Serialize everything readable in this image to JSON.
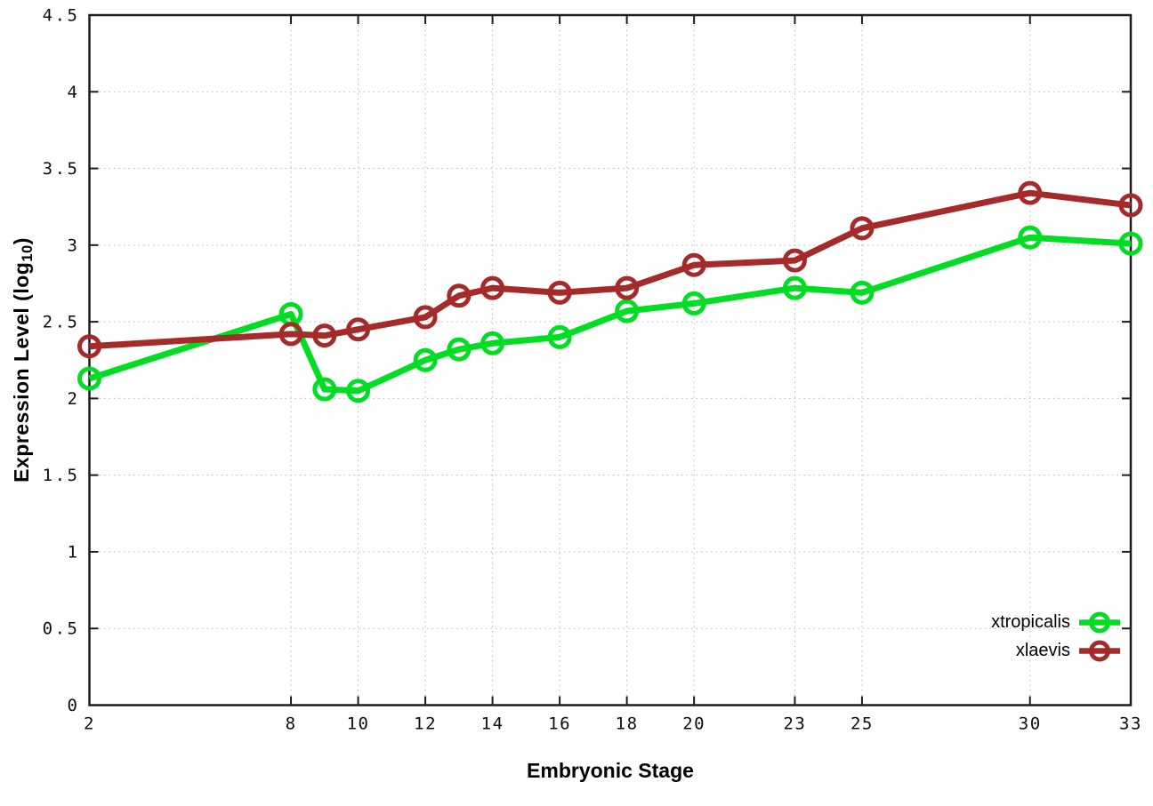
{
  "figure": {
    "background": "#ffffff"
  },
  "axes": {
    "x_title": "Embryonic Stage",
    "y_title_pre": "Expression Level (log",
    "y_title_sub": "10",
    "y_title_post": ")"
  },
  "legend": {
    "items": [
      {
        "label": "xtropicalis",
        "color": "#00dd22"
      },
      {
        "label": "xlaevis",
        "color": "#a52a2a"
      }
    ]
  },
  "chart_data": {
    "type": "line",
    "title": "",
    "xlabel": "Embryonic Stage",
    "ylabel": "Expression Level (log10)",
    "x": [
      2,
      8,
      9,
      10,
      12,
      13,
      14,
      16,
      18,
      20,
      23,
      25,
      30,
      33
    ],
    "series": [
      {
        "name": "xtropicalis",
        "color": "#00dd22",
        "values": [
          2.13,
          2.55,
          2.06,
          2.05,
          2.25,
          2.32,
          2.36,
          2.4,
          2.57,
          2.62,
          2.72,
          2.69,
          3.05,
          3.01
        ]
      },
      {
        "name": "xlaevis",
        "color": "#a52a2a",
        "values": [
          2.34,
          2.42,
          2.41,
          2.45,
          2.53,
          2.67,
          2.72,
          2.69,
          2.72,
          2.87,
          2.9,
          3.11,
          3.34,
          3.26
        ]
      }
    ],
    "xlim": [
      2,
      33
    ],
    "ylim": [
      0,
      4.5
    ],
    "x_tick_values": [
      2,
      8,
      10,
      12,
      14,
      16,
      18,
      20,
      23,
      25,
      30,
      33
    ],
    "x_tick_labels": [
      "2",
      "8",
      "10",
      "12",
      "14",
      "16",
      "18",
      "20",
      "23",
      "25",
      "30",
      "33"
    ],
    "y_tick_values": [
      0,
      0.5,
      1,
      1.5,
      2,
      2.5,
      3,
      3.5,
      4,
      4.5
    ],
    "y_tick_labels": [
      "0",
      "0.5",
      "1",
      "1.5",
      "2",
      "2.5",
      "3",
      "3.5",
      "4",
      "4.5"
    ],
    "grid": true,
    "legend_position": "bottom-right"
  },
  "style": {
    "grid_color": "#b8b8b8",
    "axis_color": "#1c1c1c",
    "tick_label_color": "#0d0d0d"
  }
}
